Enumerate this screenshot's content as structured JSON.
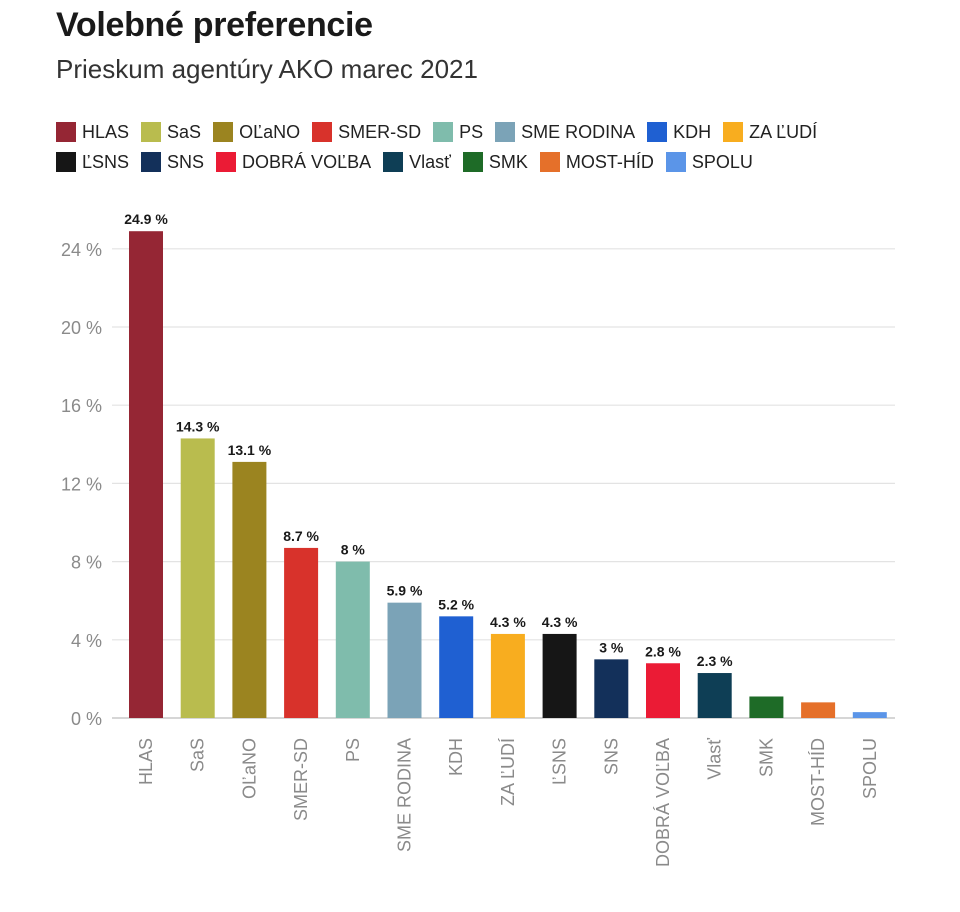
{
  "title": "Volebné preferencie",
  "subtitle": "Prieskum agentúry AKO marec 2021",
  "chart_data": {
    "type": "bar",
    "title": "Volebné preferencie",
    "subtitle": "Prieskum agentúry AKO marec 2021",
    "xlabel": "",
    "ylabel": "",
    "ylim": [
      0,
      25
    ],
    "yticks": [
      0,
      4,
      8,
      12,
      16,
      20,
      24
    ],
    "ytick_labels": [
      "0 %",
      "4 %",
      "8 %",
      "12 %",
      "16 %",
      "20 %",
      "24 %"
    ],
    "grid": true,
    "legend_placement": "top",
    "categories": [
      "HLAS",
      "SaS",
      "OĽaNO",
      "SMER-SD",
      "PS",
      "SME RODINA",
      "KDH",
      "ZA ĽUDÍ",
      "ĽSNS",
      "SNS",
      "DOBRÁ VOĽBA",
      "Vlasť",
      "SMK",
      "MOST-HÍD",
      "SPOLU"
    ],
    "values": [
      24.9,
      14.3,
      13.1,
      8.7,
      8,
      5.9,
      5.2,
      4.3,
      4.3,
      3,
      2.8,
      2.3,
      1.1,
      0.8,
      0.3
    ],
    "data_labels": [
      "24.9 %",
      "14.3 %",
      "13.1 %",
      "8.7 %",
      "8 %",
      "5.9 %",
      "5.2 %",
      "4.3 %",
      "4.3 %",
      "3 %",
      "2.8 %",
      "2.3 %",
      "",
      "",
      ""
    ],
    "colors": [
      "#952634",
      "#b9bc4e",
      "#9b8420",
      "#d8322b",
      "#7fbcac",
      "#7ba3b7",
      "#1f60d2",
      "#f8ad1f",
      "#161616",
      "#13305a",
      "#eb1b35",
      "#0e3e55",
      "#1e6b27",
      "#e5702a",
      "#5b95e8"
    ],
    "legend": [
      [
        "HLAS",
        "SaS",
        "OĽaNO",
        "SMER-SD",
        "PS",
        "SME RODINA",
        "KDH",
        "ZA ĽUDÍ"
      ],
      [
        "ĽSNS",
        "SNS",
        "DOBRÁ VOĽBA",
        "Vlasť",
        "SMK",
        "MOST-HÍD",
        "SPOLU"
      ]
    ]
  }
}
